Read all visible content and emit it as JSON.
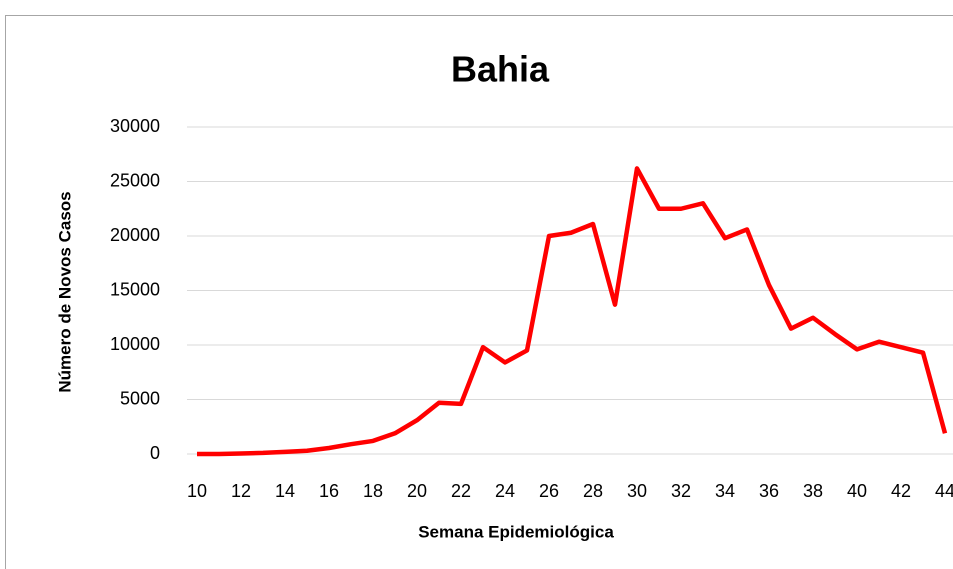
{
  "chart_data": {
    "type": "line",
    "title": "Bahia",
    "x_label": "Semana Epidemiológica",
    "y_label": "Número de Novos Casos",
    "x": [
      10,
      11,
      12,
      13,
      14,
      15,
      16,
      17,
      18,
      19,
      20,
      21,
      22,
      23,
      24,
      25,
      26,
      27,
      28,
      29,
      30,
      31,
      32,
      33,
      34,
      35,
      36,
      37,
      38,
      39,
      40,
      41,
      42,
      43,
      44
    ],
    "values": [
      0,
      0,
      50,
      100,
      200,
      300,
      550,
      900,
      1200,
      1900,
      3100,
      4700,
      4600,
      9800,
      8400,
      9500,
      20000,
      20300,
      21100,
      13700,
      26200,
      22500,
      22500,
      23000,
      19800,
      20600,
      15500,
      11500,
      12500,
      11000,
      9600,
      10300,
      9800,
      9300,
      1900
    ],
    "color": "#ff0000",
    "xlim": [
      10,
      44
    ],
    "xticks": [
      10,
      12,
      14,
      16,
      18,
      20,
      22,
      24,
      26,
      28,
      30,
      32,
      34,
      36,
      38,
      40,
      42,
      44
    ],
    "ylim": [
      0,
      30000
    ],
    "yticks": [
      0,
      5000,
      10000,
      15000,
      20000,
      25000,
      30000
    ],
    "grid": true
  }
}
